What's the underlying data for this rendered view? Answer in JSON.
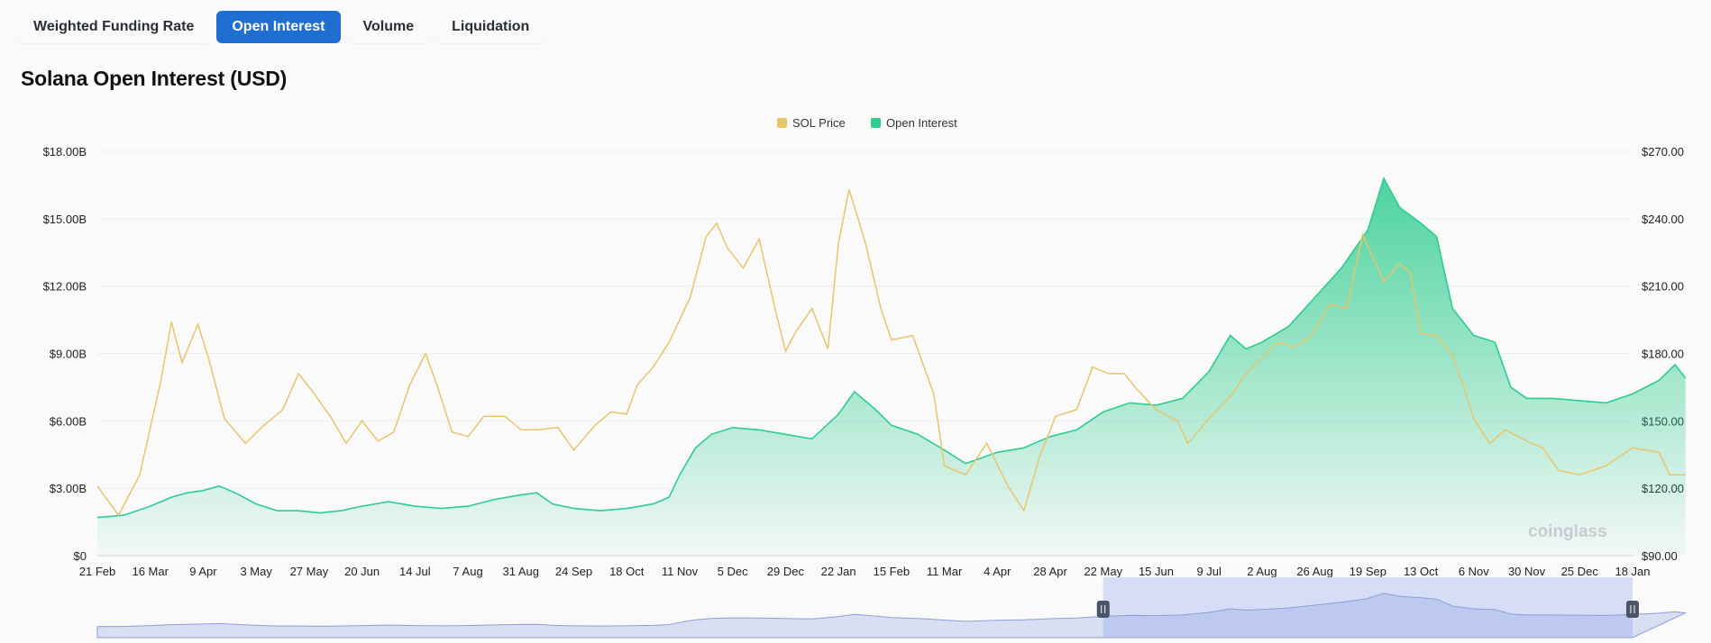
{
  "tabs": [
    {
      "label": "Weighted Funding Rate",
      "active": false
    },
    {
      "label": "Open Interest",
      "active": true
    },
    {
      "label": "Volume",
      "active": false
    },
    {
      "label": "Liquidation",
      "active": false
    }
  ],
  "title": "Solana Open Interest (USD)",
  "watermark": "coinglass",
  "colors": {
    "price": "#e9c46a",
    "oi": "#2ecc8f",
    "active_tab": "#1f6fd3",
    "navigator_selected": "#d6def7"
  },
  "chart_data": {
    "type": "line",
    "legend": [
      {
        "name": "SOL Price",
        "color": "#e9c46a"
      },
      {
        "name": "Open Interest",
        "color": "#2ecc8f"
      }
    ],
    "legend_position": "top-center",
    "x_ticks": [
      "21 Feb",
      "16 Mar",
      "9 Apr",
      "3 May",
      "27 May",
      "20 Jun",
      "14 Jul",
      "7 Aug",
      "31 Aug",
      "24 Sep",
      "18 Oct",
      "11 Nov",
      "5 Dec",
      "29 Dec",
      "22 Jan",
      "15 Feb",
      "11 Mar",
      "4 Apr",
      "28 Apr",
      "22 May",
      "15 Jun",
      "9 Jul",
      "2 Aug",
      "26 Aug",
      "19 Sep",
      "13 Oct",
      "6 Nov",
      "30 Nov",
      "25 Dec",
      "18 Jan"
    ],
    "y_left": {
      "ticks": [
        "$0",
        "$3.00B",
        "$6.00B",
        "$9.00B",
        "$12.00B",
        "$15.00B",
        "$18.00B"
      ],
      "range": [
        0,
        18
      ]
    },
    "y_right": {
      "ticks": [
        "$90.00",
        "$120.00",
        "$150.00",
        "$180.00",
        "$210.00",
        "$240.00",
        "$270.00"
      ],
      "range": [
        90,
        270
      ]
    },
    "grid": true,
    "series": [
      {
        "name": "Open Interest",
        "axis": "left",
        "unit": "B USD",
        "points": [
          [
            0,
            1.7
          ],
          [
            0.5,
            1.8
          ],
          [
            1,
            2.2
          ],
          [
            1.4,
            2.6
          ],
          [
            1.7,
            2.8
          ],
          [
            2,
            2.9
          ],
          [
            2.3,
            3.1
          ],
          [
            2.6,
            2.8
          ],
          [
            3,
            2.3
          ],
          [
            3.4,
            2.0
          ],
          [
            3.8,
            2.0
          ],
          [
            4.2,
            1.9
          ],
          [
            4.6,
            2.0
          ],
          [
            5,
            2.2
          ],
          [
            5.5,
            2.4
          ],
          [
            6,
            2.2
          ],
          [
            6.5,
            2.1
          ],
          [
            7,
            2.2
          ],
          [
            7.5,
            2.5
          ],
          [
            8,
            2.7
          ],
          [
            8.3,
            2.8
          ],
          [
            8.6,
            2.3
          ],
          [
            9,
            2.1
          ],
          [
            9.5,
            2.0
          ],
          [
            10,
            2.1
          ],
          [
            10.5,
            2.3
          ],
          [
            10.8,
            2.6
          ],
          [
            11,
            3.6
          ],
          [
            11.3,
            4.8
          ],
          [
            11.6,
            5.4
          ],
          [
            12,
            5.7
          ],
          [
            12.5,
            5.6
          ],
          [
            13,
            5.4
          ],
          [
            13.5,
            5.2
          ],
          [
            14,
            6.3
          ],
          [
            14.3,
            7.3
          ],
          [
            14.7,
            6.5
          ],
          [
            15,
            5.8
          ],
          [
            15.5,
            5.4
          ],
          [
            16,
            4.7
          ],
          [
            16.4,
            4.1
          ],
          [
            17,
            4.6
          ],
          [
            17.5,
            4.8
          ],
          [
            18,
            5.3
          ],
          [
            18.5,
            5.6
          ],
          [
            19,
            6.4
          ],
          [
            19.5,
            6.8
          ],
          [
            20,
            6.7
          ],
          [
            20.5,
            7.0
          ],
          [
            21,
            8.2
          ],
          [
            21.4,
            9.8
          ],
          [
            21.7,
            9.2
          ],
          [
            22,
            9.5
          ],
          [
            22.5,
            10.2
          ],
          [
            23,
            11.5
          ],
          [
            23.5,
            12.8
          ],
          [
            24,
            14.5
          ],
          [
            24.3,
            16.8
          ],
          [
            24.6,
            15.5
          ],
          [
            25,
            14.8
          ],
          [
            25.3,
            14.2
          ],
          [
            25.6,
            11.0
          ],
          [
            26,
            9.8
          ],
          [
            26.4,
            9.5
          ],
          [
            26.7,
            7.5
          ],
          [
            27,
            7.0
          ],
          [
            27.5,
            7.0
          ],
          [
            28,
            6.9
          ],
          [
            28.5,
            6.8
          ],
          [
            29,
            7.2
          ],
          [
            29.5,
            7.8
          ],
          [
            29.8,
            8.5
          ],
          [
            30,
            7.9
          ]
        ]
      },
      {
        "name": "SOL Price",
        "axis": "right",
        "unit": "USD",
        "points": [
          [
            0,
            121
          ],
          [
            0.4,
            108
          ],
          [
            0.8,
            126
          ],
          [
            1.2,
            168
          ],
          [
            1.4,
            194
          ],
          [
            1.6,
            176
          ],
          [
            1.9,
            193
          ],
          [
            2.1,
            178
          ],
          [
            2.4,
            151
          ],
          [
            2.8,
            140
          ],
          [
            3.1,
            147
          ],
          [
            3.5,
            155
          ],
          [
            3.8,
            171
          ],
          [
            4.1,
            162
          ],
          [
            4.4,
            152
          ],
          [
            4.7,
            140
          ],
          [
            5,
            150
          ],
          [
            5.3,
            141
          ],
          [
            5.6,
            145
          ],
          [
            5.9,
            166
          ],
          [
            6.2,
            180
          ],
          [
            6.4,
            167
          ],
          [
            6.7,
            145
          ],
          [
            7,
            143
          ],
          [
            7.3,
            152
          ],
          [
            7.7,
            152
          ],
          [
            8,
            146
          ],
          [
            8.3,
            146
          ],
          [
            8.7,
            147
          ],
          [
            9,
            137
          ],
          [
            9.4,
            148
          ],
          [
            9.7,
            154
          ],
          [
            10,
            153
          ],
          [
            10.2,
            166
          ],
          [
            10.5,
            174
          ],
          [
            10.8,
            185
          ],
          [
            11.2,
            205
          ],
          [
            11.5,
            232
          ],
          [
            11.7,
            238
          ],
          [
            11.9,
            227
          ],
          [
            12.2,
            218
          ],
          [
            12.5,
            231
          ],
          [
            12.8,
            200
          ],
          [
            13,
            181
          ],
          [
            13.2,
            190
          ],
          [
            13.5,
            200
          ],
          [
            13.8,
            182
          ],
          [
            14,
            229
          ],
          [
            14.2,
            253
          ],
          [
            14.5,
            230
          ],
          [
            14.8,
            200
          ],
          [
            15,
            186
          ],
          [
            15.4,
            188
          ],
          [
            15.6,
            175
          ],
          [
            15.8,
            162
          ],
          [
            16,
            130
          ],
          [
            16.4,
            126
          ],
          [
            16.8,
            140
          ],
          [
            17.2,
            121
          ],
          [
            17.5,
            110
          ],
          [
            17.8,
            134
          ],
          [
            18.1,
            152
          ],
          [
            18.5,
            155
          ],
          [
            18.8,
            174
          ],
          [
            19.1,
            171
          ],
          [
            19.4,
            171
          ],
          [
            19.6,
            165
          ],
          [
            20,
            155
          ],
          [
            20.4,
            150
          ],
          [
            20.6,
            140
          ],
          [
            21,
            151
          ],
          [
            21.4,
            161
          ],
          [
            21.7,
            171
          ],
          [
            22,
            178
          ],
          [
            22.3,
            185
          ],
          [
            22.6,
            183
          ],
          [
            22.9,
            187
          ],
          [
            23.3,
            202
          ],
          [
            23.6,
            200
          ],
          [
            23.9,
            233
          ],
          [
            24.3,
            212
          ],
          [
            24.6,
            220
          ],
          [
            24.8,
            216
          ],
          [
            25,
            189
          ],
          [
            25.3,
            188
          ],
          [
            25.6,
            179
          ],
          [
            25.8,
            166
          ],
          [
            26,
            151
          ],
          [
            26.3,
            140
          ],
          [
            26.6,
            146
          ],
          [
            27,
            141
          ],
          [
            27.3,
            138
          ],
          [
            27.6,
            128
          ],
          [
            28,
            126
          ],
          [
            28.5,
            130
          ],
          [
            29,
            138
          ],
          [
            29.5,
            136
          ],
          [
            29.7,
            126
          ],
          [
            30,
            126
          ]
        ]
      }
    ],
    "navigator": {
      "selected_range": [
        "22 May",
        "18 Jan"
      ]
    }
  }
}
